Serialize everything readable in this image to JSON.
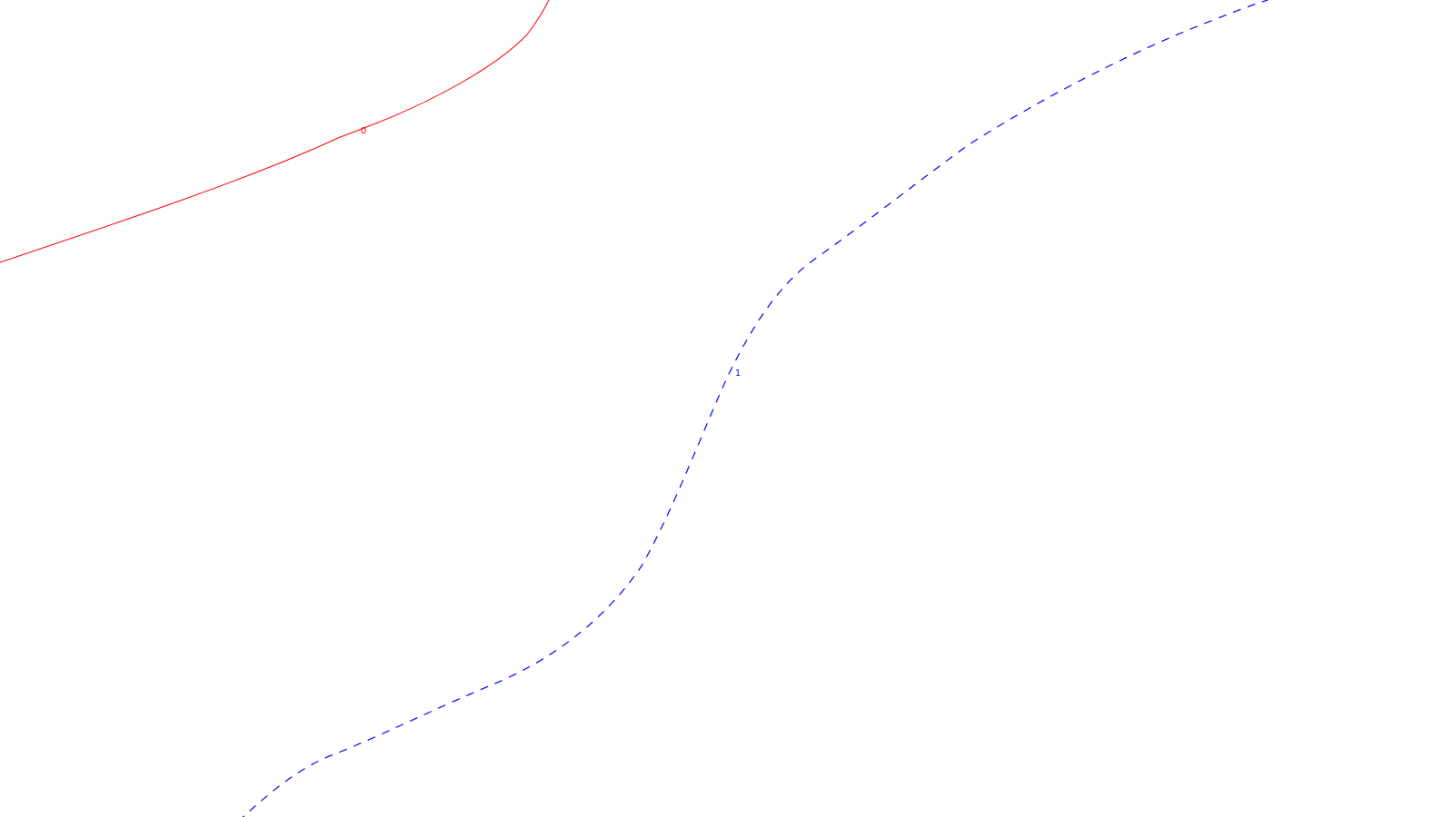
{
  "map": {
    "background_color": "#ffffff",
    "contours": [
      {
        "label": "0",
        "color": "#ff0000",
        "line_style": "solid"
      },
      {
        "label": "1",
        "color": "#0000ff",
        "line_style": "dashed"
      }
    ]
  }
}
